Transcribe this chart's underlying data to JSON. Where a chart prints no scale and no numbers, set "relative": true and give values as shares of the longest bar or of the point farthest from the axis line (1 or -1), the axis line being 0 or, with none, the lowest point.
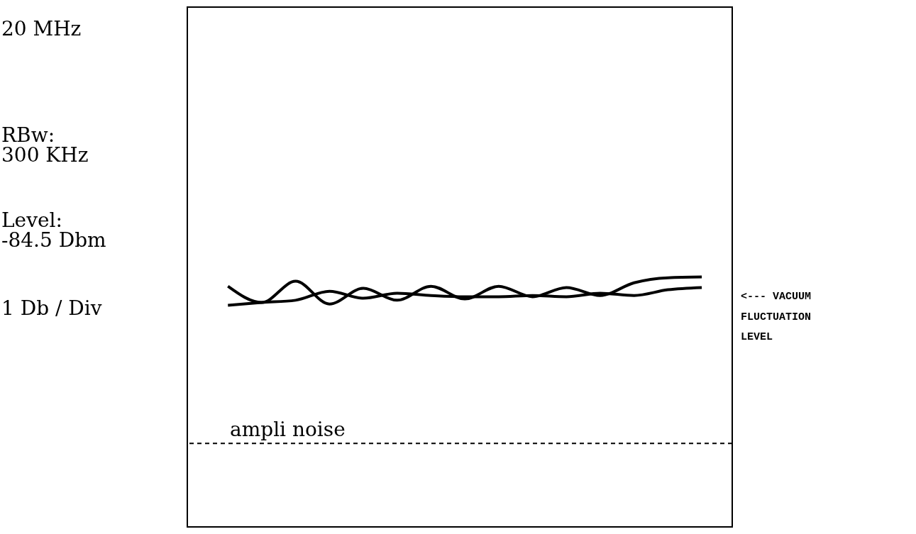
{
  "chart_data": {
    "type": "line",
    "relative": true,
    "marker": "none",
    "line_style": "solid",
    "categories": [
      null,
      null,
      null,
      null,
      null,
      null,
      null,
      null,
      null,
      null,
      null,
      null,
      null,
      null,
      null
    ],
    "series": [
      {
        "color": "#000000",
        "values": [
          0.963,
          0.898,
          0.983,
          0.892,
          0.955,
          0.907,
          0.963,
          0.912,
          0.963,
          0.921,
          0.958,
          0.926,
          0.977,
          0.997,
          1
        ]
      },
      {
        "color": "#000000",
        "values": [
          0.887,
          0.898,
          0.907,
          0.943,
          0.915,
          0.935,
          0.926,
          0.921,
          0.921,
          0.926,
          0.921,
          0.935,
          0.926,
          0.949,
          0.958
        ]
      }
    ],
    "ref_lines": [
      {
        "axis": "y",
        "value": 0.334,
        "label": "ampli noise",
        "color": "#000000",
        "line_style": "dashed"
      }
    ],
    "annotations": [
      "20 MHz",
      "RBw:\n300 KHz",
      "Level:\n-84.5 Dbm",
      "1 Db / Div",
      "<--- VACUUM\n  FLUCTUATION\n    LEVEL"
    ]
  }
}
